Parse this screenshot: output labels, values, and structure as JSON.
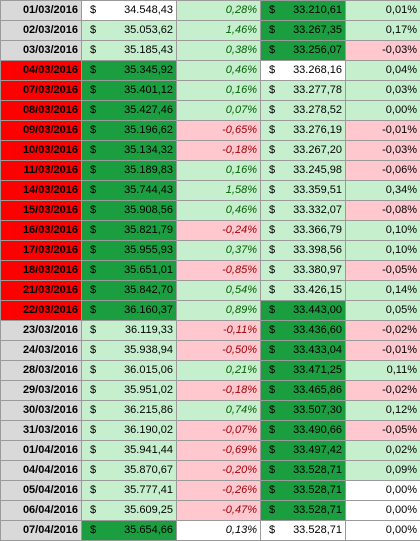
{
  "currency_symbol": "$",
  "rows": [
    {
      "date": "01/03/2016",
      "date_red": false,
      "price1": "34.548,43",
      "p1bg": "white",
      "pct1": "0,28%",
      "pct1bg": "light",
      "pct1c": "green",
      "price2": "33.210,61",
      "p2bg": "dark",
      "pct2": "0,01%",
      "pct2bg": "light"
    },
    {
      "date": "02/03/2016",
      "date_red": false,
      "price1": "35.053,62",
      "p1bg": "light",
      "pct1": "1,46%",
      "pct1bg": "light",
      "pct1c": "green",
      "price2": "33.267,35",
      "p2bg": "dark",
      "pct2": "0,17%",
      "pct2bg": "light"
    },
    {
      "date": "03/03/2016",
      "date_red": false,
      "price1": "35.185,43",
      "p1bg": "light",
      "pct1": "0,38%",
      "pct1bg": "light",
      "pct1c": "green",
      "price2": "33.256,07",
      "p2bg": "dark",
      "pct2": "-0,03%",
      "pct2bg": "pink"
    },
    {
      "date": "04/03/2016",
      "date_red": true,
      "price1": "35.345,92",
      "p1bg": "dark",
      "pct1": "0,46%",
      "pct1bg": "light",
      "pct1c": "green",
      "price2": "33.268,16",
      "p2bg": "white",
      "pct2": "0,04%",
      "pct2bg": "light"
    },
    {
      "date": "07/03/2016",
      "date_red": true,
      "price1": "35.401,12",
      "p1bg": "dark",
      "pct1": "0,16%",
      "pct1bg": "light",
      "pct1c": "green",
      "price2": "33.277,78",
      "p2bg": "light",
      "pct2": "0,03%",
      "pct2bg": "light"
    },
    {
      "date": "08/03/2016",
      "date_red": true,
      "price1": "35.427,46",
      "p1bg": "dark",
      "pct1": "0,07%",
      "pct1bg": "light",
      "pct1c": "green",
      "price2": "33.278,52",
      "p2bg": "light",
      "pct2": "0,00%",
      "pct2bg": "light"
    },
    {
      "date": "09/03/2016",
      "date_red": true,
      "price1": "35.196,62",
      "p1bg": "dark",
      "pct1": "-0,65%",
      "pct1bg": "pink",
      "pct1c": "red",
      "price2": "33.276,19",
      "p2bg": "light",
      "pct2": "-0,01%",
      "pct2bg": "pink"
    },
    {
      "date": "10/03/2016",
      "date_red": true,
      "price1": "35.134,32",
      "p1bg": "dark",
      "pct1": "-0,18%",
      "pct1bg": "pink",
      "pct1c": "red",
      "price2": "33.267,20",
      "p2bg": "light",
      "pct2": "-0,03%",
      "pct2bg": "pink"
    },
    {
      "date": "11/03/2016",
      "date_red": true,
      "price1": "35.189,83",
      "p1bg": "dark",
      "pct1": "0,16%",
      "pct1bg": "light",
      "pct1c": "green",
      "price2": "33.245,98",
      "p2bg": "light",
      "pct2": "-0,06%",
      "pct2bg": "pink"
    },
    {
      "date": "14/03/2016",
      "date_red": true,
      "price1": "35.744,43",
      "p1bg": "dark",
      "pct1": "1,58%",
      "pct1bg": "light",
      "pct1c": "green",
      "price2": "33.359,51",
      "p2bg": "light",
      "pct2": "0,34%",
      "pct2bg": "light"
    },
    {
      "date": "15/03/2016",
      "date_red": true,
      "price1": "35.908,56",
      "p1bg": "dark",
      "pct1": "0,46%",
      "pct1bg": "light",
      "pct1c": "green",
      "price2": "33.332,07",
      "p2bg": "light",
      "pct2": "-0,08%",
      "pct2bg": "pink"
    },
    {
      "date": "16/03/2016",
      "date_red": true,
      "price1": "35.821,79",
      "p1bg": "dark",
      "pct1": "-0,24%",
      "pct1bg": "pink",
      "pct1c": "red",
      "price2": "33.366,79",
      "p2bg": "light",
      "pct2": "0,10%",
      "pct2bg": "light"
    },
    {
      "date": "17/03/2016",
      "date_red": true,
      "price1": "35.955,93",
      "p1bg": "dark",
      "pct1": "0,37%",
      "pct1bg": "light",
      "pct1c": "green",
      "price2": "33.398,56",
      "p2bg": "light",
      "pct2": "0,10%",
      "pct2bg": "light"
    },
    {
      "date": "18/03/2016",
      "date_red": true,
      "price1": "35.651,01",
      "p1bg": "dark",
      "pct1": "-0,85%",
      "pct1bg": "pink",
      "pct1c": "red",
      "price2": "33.380,97",
      "p2bg": "light",
      "pct2": "-0,05%",
      "pct2bg": "pink"
    },
    {
      "date": "21/03/2016",
      "date_red": true,
      "price1": "35.842,70",
      "p1bg": "dark",
      "pct1": "0,54%",
      "pct1bg": "light",
      "pct1c": "green",
      "price2": "33.426,15",
      "p2bg": "light",
      "pct2": "0,14%",
      "pct2bg": "light"
    },
    {
      "date": "22/03/2016",
      "date_red": true,
      "price1": "36.160,37",
      "p1bg": "dark",
      "pct1": "0,89%",
      "pct1bg": "light",
      "pct1c": "green",
      "price2": "33.443,00",
      "p2bg": "dark",
      "pct2": "0,05%",
      "pct2bg": "light"
    },
    {
      "date": "23/03/2016",
      "date_red": false,
      "price1": "36.119,33",
      "p1bg": "light",
      "pct1": "-0,11%",
      "pct1bg": "pink",
      "pct1c": "red",
      "price2": "33.436,60",
      "p2bg": "dark",
      "pct2": "-0,02%",
      "pct2bg": "pink"
    },
    {
      "date": "24/03/2016",
      "date_red": false,
      "price1": "35.938,94",
      "p1bg": "light",
      "pct1": "-0,50%",
      "pct1bg": "pink",
      "pct1c": "red",
      "price2": "33.433,04",
      "p2bg": "dark",
      "pct2": "-0,01%",
      "pct2bg": "pink"
    },
    {
      "date": "28/03/2016",
      "date_red": false,
      "price1": "36.015,06",
      "p1bg": "light",
      "pct1": "0,21%",
      "pct1bg": "light",
      "pct1c": "green",
      "price2": "33.471,25",
      "p2bg": "dark",
      "pct2": "0,11%",
      "pct2bg": "light"
    },
    {
      "date": "29/03/2016",
      "date_red": false,
      "price1": "35.951,02",
      "p1bg": "light",
      "pct1": "-0,18%",
      "pct1bg": "pink",
      "pct1c": "red",
      "price2": "33.465,86",
      "p2bg": "dark",
      "pct2": "-0,02%",
      "pct2bg": "pink"
    },
    {
      "date": "30/03/2016",
      "date_red": false,
      "price1": "36.215,86",
      "p1bg": "light",
      "pct1": "0,74%",
      "pct1bg": "light",
      "pct1c": "green",
      "price2": "33.507,30",
      "p2bg": "dark",
      "pct2": "0,12%",
      "pct2bg": "light"
    },
    {
      "date": "31/03/2016",
      "date_red": false,
      "price1": "36.190,02",
      "p1bg": "light",
      "pct1": "-0,07%",
      "pct1bg": "pink",
      "pct1c": "red",
      "price2": "33.490,66",
      "p2bg": "dark",
      "pct2": "-0,05%",
      "pct2bg": "pink"
    },
    {
      "date": "01/04/2016",
      "date_red": false,
      "price1": "35.941,44",
      "p1bg": "light",
      "pct1": "-0,69%",
      "pct1bg": "pink",
      "pct1c": "red",
      "price2": "33.497,42",
      "p2bg": "dark",
      "pct2": "0,02%",
      "pct2bg": "light"
    },
    {
      "date": "04/04/2016",
      "date_red": false,
      "price1": "35.870,67",
      "p1bg": "light",
      "pct1": "-0,20%",
      "pct1bg": "pink",
      "pct1c": "red",
      "price2": "33.528,71",
      "p2bg": "dark",
      "pct2": "0,09%",
      "pct2bg": "light"
    },
    {
      "date": "05/04/2016",
      "date_red": false,
      "price1": "35.777,41",
      "p1bg": "light",
      "pct1": "-0,26%",
      "pct1bg": "pink",
      "pct1c": "red",
      "price2": "33.528,71",
      "p2bg": "dark",
      "pct2": "0,00%",
      "pct2bg": "white"
    },
    {
      "date": "06/04/2016",
      "date_red": false,
      "price1": "35.609,25",
      "p1bg": "light",
      "pct1": "-0,47%",
      "pct1bg": "pink",
      "pct1c": "red",
      "price2": "33.528,71",
      "p2bg": "dark",
      "pct2": "0,00%",
      "pct2bg": "white"
    },
    {
      "date": "07/04/2016",
      "date_red": false,
      "price1": "35.654,66",
      "p1bg": "dark",
      "pct1": "0,13%",
      "pct1bg": "white",
      "pct1c": "black",
      "price2": "33.528,71",
      "p2bg": "white",
      "pct2": "0,00%",
      "pct2bg": "white"
    }
  ],
  "colors": {
    "date_gray": "#d9d9d9",
    "date_red": "#ff0000",
    "light_green": "#c6efce",
    "dark_green": "#1a9e3f",
    "light_red": "#ffc7ce",
    "text_green": "#006100",
    "text_red": "#9c0006"
  }
}
